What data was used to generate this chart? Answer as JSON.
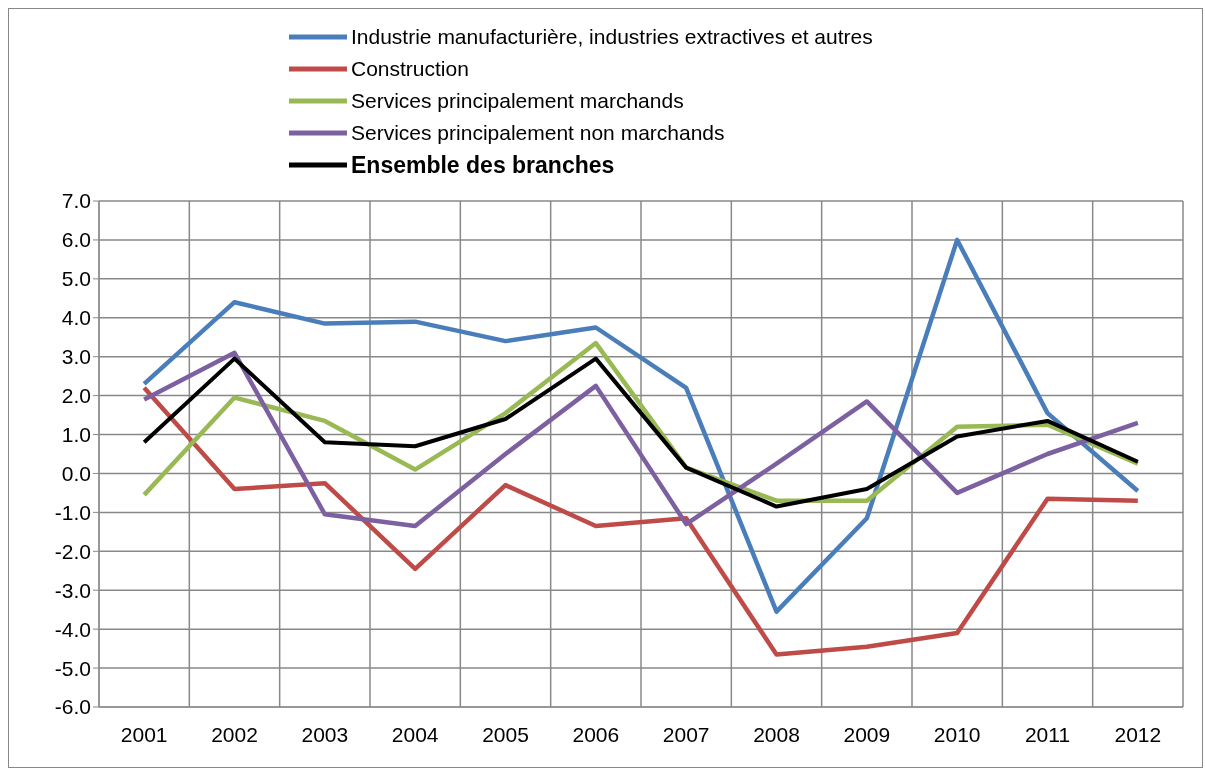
{
  "chart_data": {
    "type": "line",
    "categories": [
      "2001",
      "2002",
      "2003",
      "2004",
      "2005",
      "2006",
      "2007",
      "2008",
      "2009",
      "2010",
      "2011",
      "2012"
    ],
    "series": [
      {
        "name": "Industrie manufacturière, industries extractives et autres",
        "color": "#4a7ebb",
        "values": [
          2.3,
          4.4,
          3.85,
          3.9,
          3.4,
          3.75,
          2.2,
          -3.55,
          -1.15,
          6.0,
          1.55,
          -0.45
        ]
      },
      {
        "name": "Construction",
        "color": "#be4b48",
        "values": [
          2.2,
          -0.4,
          -0.25,
          -2.45,
          -0.3,
          -1.35,
          -1.15,
          -4.65,
          -4.45,
          -4.1,
          -0.65,
          -0.7
        ]
      },
      {
        "name": "Services principalement marchands",
        "color": "#98b954",
        "values": [
          -0.55,
          1.95,
          1.35,
          0.1,
          1.55,
          3.35,
          0.15,
          -0.7,
          -0.7,
          1.2,
          1.25,
          0.25
        ]
      },
      {
        "name": "Services principalement non marchands",
        "color": "#7d60a0",
        "values": [
          1.9,
          3.1,
          -1.05,
          -1.35,
          0.5,
          2.25,
          -1.3,
          0.25,
          1.85,
          -0.5,
          0.5,
          1.3
        ]
      },
      {
        "name": "Ensemble des branches",
        "color": "#000000",
        "values": [
          0.8,
          2.95,
          0.8,
          0.7,
          1.4,
          2.95,
          0.15,
          -0.85,
          -0.4,
          0.95,
          1.35,
          0.3
        ]
      }
    ],
    "ylim": [
      -6,
      7
    ],
    "yticks": [
      {
        "value": -6,
        "label": "-6.0"
      },
      {
        "value": -5,
        "label": "-5.0"
      },
      {
        "value": -4,
        "label": "-4.0"
      },
      {
        "value": -3,
        "label": "-3.0"
      },
      {
        "value": -2,
        "label": "-2.0"
      },
      {
        "value": -1,
        "label": "-1.0"
      },
      {
        "value": 0,
        "label": "0.0"
      },
      {
        "value": 1,
        "label": "1.0"
      },
      {
        "value": 2,
        "label": "2.0"
      },
      {
        "value": 3,
        "label": "3.0"
      },
      {
        "value": 4,
        "label": "4.0"
      },
      {
        "value": 5,
        "label": "5.0"
      },
      {
        "value": 6,
        "label": "6.0"
      },
      {
        "value": 7,
        "label": "7.0"
      }
    ],
    "grid": true,
    "legend": "top",
    "marker": "none",
    "line_style": "solid"
  }
}
